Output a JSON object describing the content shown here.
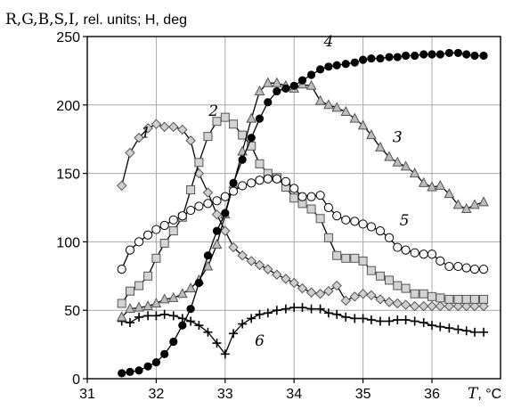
{
  "chart_data": {
    "type": "line",
    "title_serif": "R,G,B,S,I,",
    "title_sans": " rel. units; H, deg",
    "xlabel_italic": "T",
    "xlabel_unit": ", °C",
    "xlim": [
      31,
      37
    ],
    "ylim": [
      0,
      250
    ],
    "xticks": [
      "31",
      "32",
      "33",
      "34",
      "35",
      "36"
    ],
    "yticks": [
      "0",
      "50",
      "100",
      "150",
      "200",
      "250"
    ],
    "grid": true,
    "series": [
      {
        "name": "1",
        "marker": "diamond",
        "fill": "#cfcfcf",
        "label_at": [
          31.85,
          176
        ],
        "x": [
          31.5,
          31.62,
          31.75,
          31.88,
          32.0,
          32.12,
          32.25,
          32.38,
          32.5,
          32.62,
          32.75,
          32.88,
          33.0,
          33.12,
          33.25,
          33.38,
          33.5,
          33.62,
          33.75,
          33.88,
          34.0,
          34.12,
          34.25,
          34.38,
          34.5,
          34.62,
          34.75,
          34.88,
          35.0,
          35.12,
          35.25,
          35.38,
          35.5,
          35.62,
          35.75,
          35.88,
          36.0,
          36.12,
          36.25,
          36.38,
          36.5,
          36.62,
          36.75
        ],
        "y": [
          141,
          165,
          176,
          183,
          186,
          184,
          184,
          182,
          174,
          150,
          136,
          120,
          108,
          96,
          90,
          86,
          83,
          80,
          76,
          73,
          70,
          66,
          63,
          62,
          64,
          68,
          57,
          60,
          62,
          61,
          58,
          56,
          55,
          54,
          53,
          53,
          53,
          53,
          53,
          53,
          53,
          53,
          53
        ]
      },
      {
        "name": "2",
        "marker": "square",
        "fill": "#d4d4d4",
        "label_at": [
          32.83,
          192
        ],
        "x": [
          31.5,
          31.62,
          31.75,
          31.88,
          32.0,
          32.12,
          32.25,
          32.38,
          32.5,
          32.62,
          32.75,
          32.88,
          33.0,
          33.12,
          33.25,
          33.38,
          33.5,
          33.62,
          33.75,
          33.88,
          34.0,
          34.12,
          34.25,
          34.38,
          34.5,
          34.62,
          34.75,
          34.88,
          35.0,
          35.12,
          35.25,
          35.38,
          35.5,
          35.62,
          35.75,
          35.88,
          36.0,
          36.12,
          36.25,
          36.38,
          36.5,
          36.62,
          36.75
        ],
        "y": [
          55,
          64,
          68,
          75,
          88,
          99,
          108,
          118,
          138,
          158,
          177,
          188,
          191,
          186,
          178,
          170,
          157,
          150,
          147,
          140,
          132,
          128,
          124,
          117,
          103,
          90,
          88,
          88,
          86,
          79,
          75,
          72,
          68,
          66,
          62,
          62,
          60,
          59,
          58,
          58,
          58,
          58,
          58
        ]
      },
      {
        "name": "3",
        "marker": "triangle",
        "fill": "#bdbdbd",
        "label_at": [
          35.5,
          173
        ],
        "x": [
          31.5,
          31.62,
          31.75,
          31.88,
          32.0,
          32.12,
          32.25,
          32.38,
          32.5,
          32.62,
          32.75,
          32.88,
          33.0,
          33.12,
          33.25,
          33.38,
          33.5,
          33.62,
          33.75,
          33.88,
          34.0,
          34.12,
          34.25,
          34.38,
          34.5,
          34.62,
          34.75,
          34.88,
          35.0,
          35.12,
          35.25,
          35.38,
          35.5,
          35.62,
          35.75,
          35.88,
          36.0,
          36.12,
          36.25,
          36.38,
          36.5,
          36.62,
          36.75
        ],
        "y": [
          45,
          51,
          52,
          53,
          55,
          58,
          59,
          62,
          66,
          72,
          82,
          98,
          120,
          142,
          166,
          190,
          210,
          216,
          216,
          214,
          212,
          215,
          214,
          203,
          200,
          198,
          195,
          190,
          185,
          178,
          169,
          162,
          158,
          155,
          150,
          143,
          140,
          141,
          135,
          127,
          124,
          127,
          129
        ]
      },
      {
        "name": "4",
        "marker": "circle-filled",
        "fill": "#000000",
        "label_at": [
          34.5,
          243
        ],
        "x": [
          31.5,
          31.62,
          31.75,
          31.88,
          32.0,
          32.12,
          32.25,
          32.38,
          32.5,
          32.62,
          32.75,
          32.88,
          33.0,
          33.12,
          33.25,
          33.38,
          33.5,
          33.62,
          33.75,
          33.88,
          34.0,
          34.12,
          34.25,
          34.38,
          34.5,
          34.62,
          34.75,
          34.88,
          35.0,
          35.12,
          35.25,
          35.38,
          35.5,
          35.62,
          35.75,
          35.88,
          36.0,
          36.12,
          36.25,
          36.38,
          36.5,
          36.62,
          36.75
        ],
        "y": [
          4,
          5,
          6,
          9,
          12,
          18,
          27,
          39,
          51,
          70,
          90,
          108,
          121,
          143,
          160,
          176,
          190,
          202,
          210,
          212,
          214,
          218,
          222,
          226,
          228,
          229,
          230,
          231,
          233,
          234,
          234,
          235,
          235,
          236,
          236,
          237,
          237,
          237,
          238,
          238,
          237,
          236,
          236
        ]
      },
      {
        "name": "5",
        "marker": "circle-open",
        "fill": "#ffffff",
        "label_at": [
          35.6,
          112
        ],
        "x": [
          31.5,
          31.62,
          31.75,
          31.88,
          32.0,
          32.12,
          32.25,
          32.38,
          32.5,
          32.62,
          32.75,
          32.88,
          33.0,
          33.12,
          33.25,
          33.38,
          33.5,
          33.62,
          33.75,
          33.88,
          34.0,
          34.12,
          34.25,
          34.38,
          34.5,
          34.62,
          34.75,
          34.88,
          35.0,
          35.12,
          35.25,
          35.38,
          35.5,
          35.62,
          35.75,
          35.88,
          36.0,
          36.12,
          36.25,
          36.38,
          36.5,
          36.62,
          36.75
        ],
        "y": [
          80,
          94,
          100,
          105,
          109,
          112,
          116,
          119,
          123,
          126,
          128,
          130,
          133,
          137,
          141,
          143,
          145,
          146,
          146,
          144,
          139,
          133,
          133,
          134,
          125,
          119,
          116,
          115,
          113,
          111,
          108,
          103,
          96,
          94,
          92,
          91,
          91,
          86,
          82,
          82,
          81,
          80,
          80
        ]
      },
      {
        "name": "6",
        "marker": "plus",
        "fill": "#000000",
        "label_at": [
          33.5,
          24
        ],
        "x": [
          31.5,
          31.62,
          31.75,
          31.88,
          32.0,
          32.12,
          32.25,
          32.38,
          32.5,
          32.62,
          32.75,
          32.88,
          33.0,
          33.12,
          33.25,
          33.38,
          33.5,
          33.62,
          33.75,
          33.88,
          34.0,
          34.12,
          34.25,
          34.38,
          34.5,
          34.62,
          34.75,
          34.88,
          35.0,
          35.12,
          35.25,
          35.38,
          35.5,
          35.62,
          35.75,
          35.88,
          36.0,
          36.12,
          36.25,
          36.38,
          36.5,
          36.62,
          36.75
        ],
        "y": [
          42,
          41,
          45,
          46,
          46,
          47,
          46,
          44,
          42,
          39,
          34,
          26,
          18,
          33,
          40,
          44,
          47,
          48,
          50,
          51,
          52,
          52,
          51,
          51,
          48,
          47,
          45,
          44,
          44,
          43,
          42,
          42,
          43,
          43,
          42,
          41,
          39,
          38,
          37,
          36,
          35,
          34,
          34
        ]
      }
    ]
  }
}
